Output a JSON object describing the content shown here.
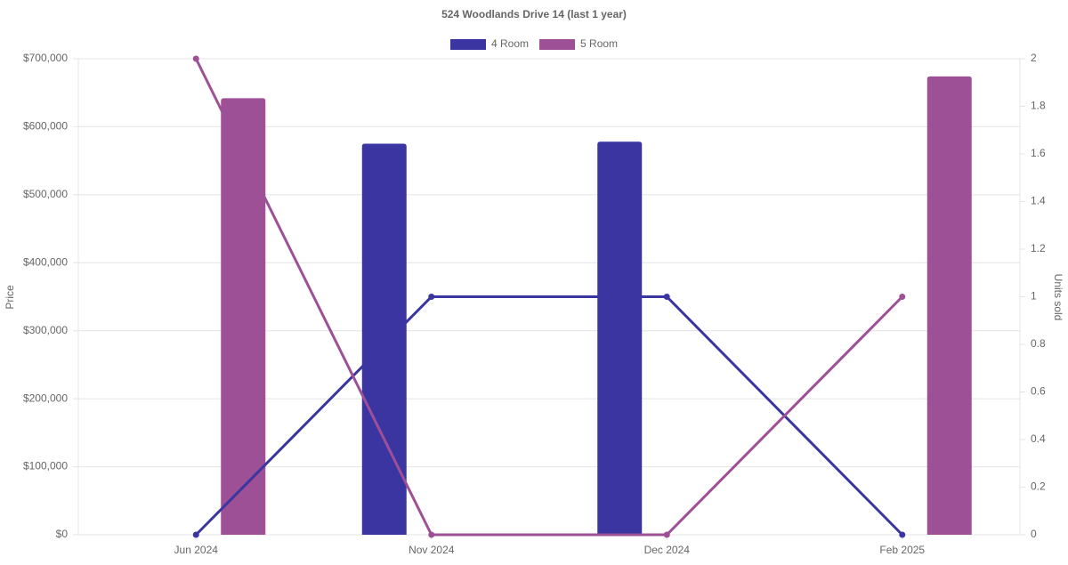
{
  "chart_data": {
    "type": "bar_line",
    "title": "524 Woodlands Drive 14 (last 1 year)",
    "y_label": "Price",
    "y2_label": "Units sold",
    "categories": [
      "Jun 2024",
      "Nov 2024",
      "Dec 2024",
      "Feb 2025"
    ],
    "series": [
      {
        "name": "4 Room",
        "color": "#3a35a0",
        "values": [
          null,
          575000,
          578000,
          null
        ],
        "units": [
          0,
          1,
          1,
          0
        ]
      },
      {
        "name": "5 Room",
        "color": "#9e5096",
        "values": [
          642000,
          null,
          null,
          674000
        ],
        "units": [
          2,
          0,
          0,
          1
        ]
      }
    ],
    "ylim": [
      0,
      700000
    ],
    "yticks": [
      {
        "value": 0,
        "label": "$0"
      },
      {
        "value": 100000,
        "label": "$100,000"
      },
      {
        "value": 200000,
        "label": "$200,000"
      },
      {
        "value": 300000,
        "label": "$300,000"
      },
      {
        "value": 400000,
        "label": "$400,000"
      },
      {
        "value": 500000,
        "label": "$500,000"
      },
      {
        "value": 600000,
        "label": "$600,000"
      },
      {
        "value": 700000,
        "label": "$700,000"
      }
    ],
    "y2lim": [
      0,
      2
    ],
    "y2ticks": [
      0,
      0.2,
      0.4,
      0.6,
      0.8,
      1,
      1.2,
      1.4,
      1.6,
      1.8,
      2
    ],
    "grid": true,
    "legend": "top"
  }
}
